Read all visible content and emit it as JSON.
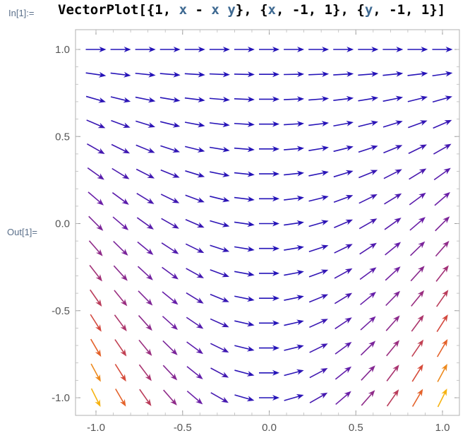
{
  "notebook": {
    "input_label": "In[1]:=",
    "output_label": "Out[1]=",
    "input": {
      "fn": "VectorPlot",
      "open": "[{",
      "c1": "1",
      "sep1": ", ",
      "e1": "x",
      "minus": " - ",
      "e2": "x",
      "space": " ",
      "e3": "y",
      "close1": "}, {",
      "vx": "x",
      "rx": ", -1, 1}, {",
      "vy": "y",
      "ry": ", -1, 1}]"
    }
  },
  "chart_data": {
    "type": "vector-field",
    "field": [
      "1",
      "x - x y"
    ],
    "xlim": [
      -1,
      1
    ],
    "ylim": [
      -1,
      1
    ],
    "x_ticks": [
      "-1.0",
      "-0.5",
      "0.0",
      "0.5",
      "1.0"
    ],
    "y_ticks": [
      "1.0",
      "0.5",
      "0.0",
      "-0.5",
      "-1.0"
    ],
    "grid_points": 15,
    "color_scale": [
      "#2413b8",
      "#6a1fa8",
      "#a0307a",
      "#e0502f",
      "#f6b312"
    ]
  }
}
